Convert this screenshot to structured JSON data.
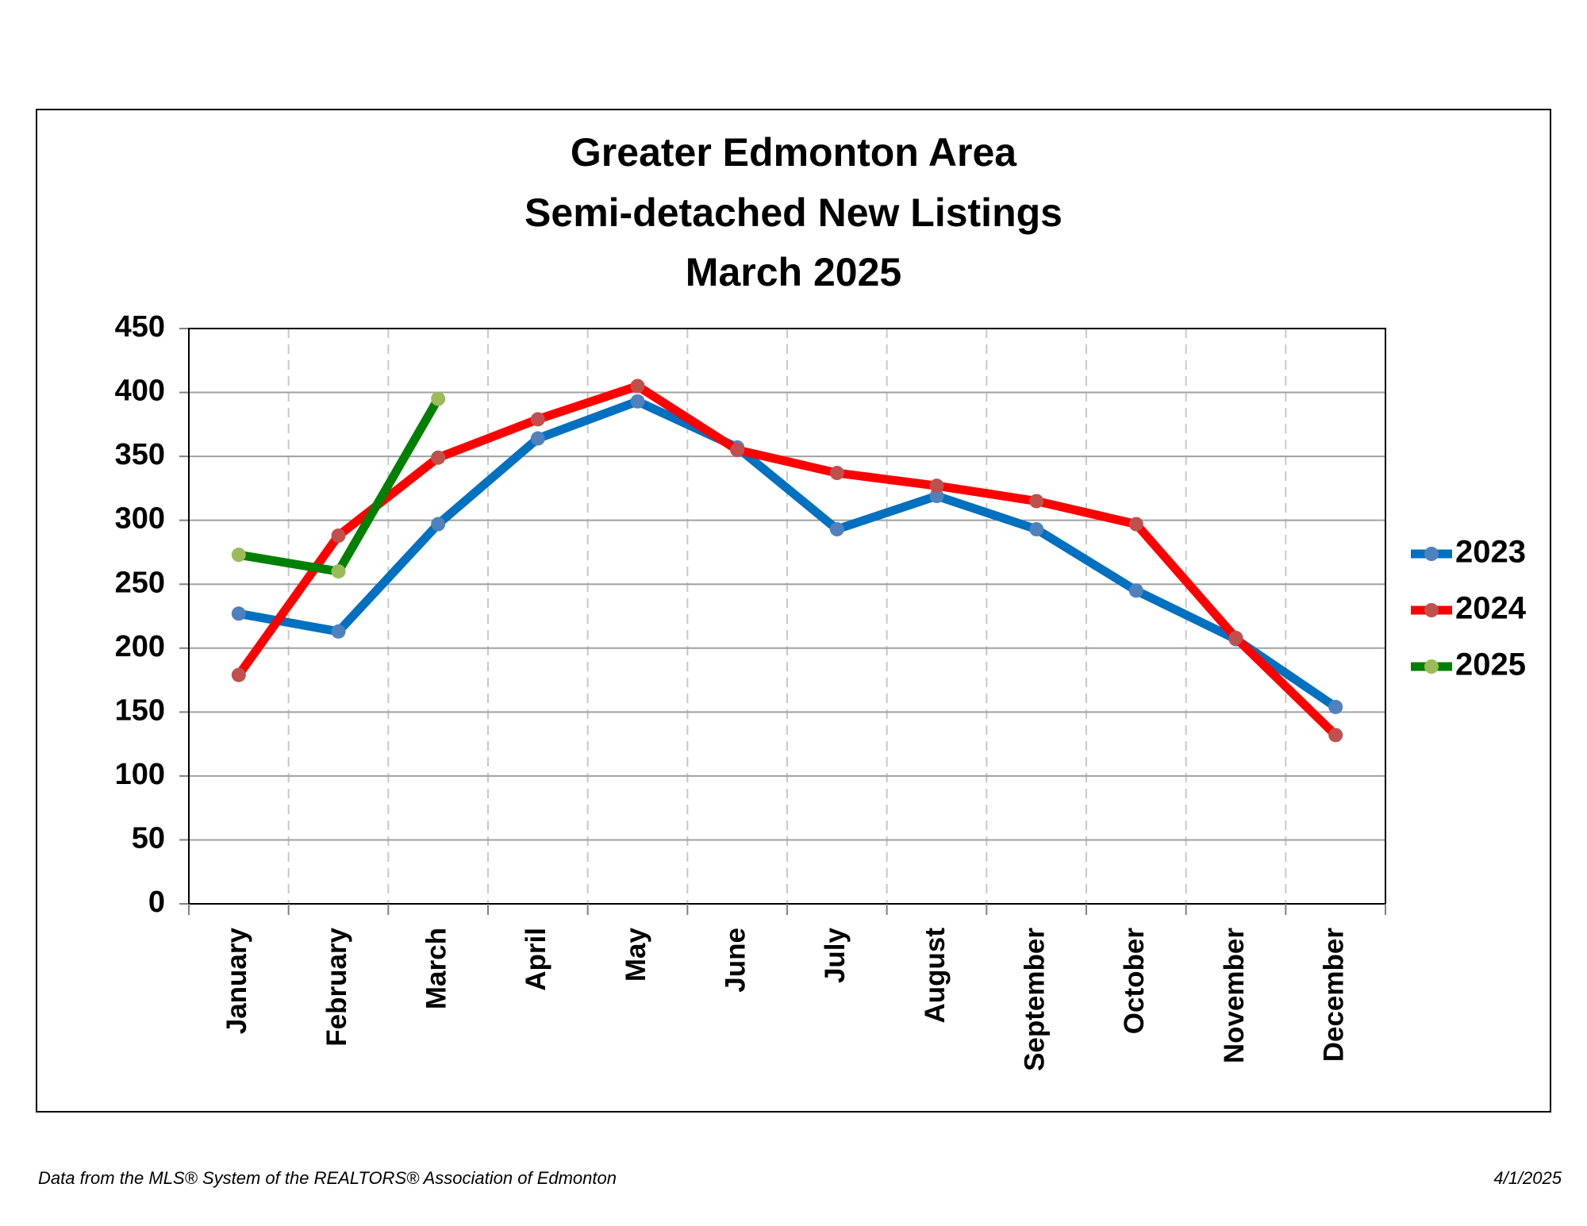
{
  "chart_data": {
    "type": "line",
    "title": [
      "Greater Edmonton Area",
      "Semi-detached New Listings",
      "March 2025"
    ],
    "categories": [
      "January",
      "February",
      "March",
      "April",
      "May",
      "June",
      "July",
      "August",
      "September",
      "October",
      "November",
      "December"
    ],
    "series": [
      {
        "name": "2023",
        "color": "#0070c0",
        "marker_color": "#4f81bd",
        "values": [
          227,
          213,
          297,
          364,
          393,
          357,
          293,
          319,
          293,
          245,
          207,
          154
        ]
      },
      {
        "name": "2024",
        "color": "#ff0000",
        "marker_color": "#c0504d",
        "values": [
          179,
          288,
          349,
          379,
          405,
          355,
          337,
          327,
          315,
          297,
          208,
          132
        ]
      },
      {
        "name": "2025",
        "color": "#008000",
        "marker_color": "#9bbb59",
        "values": [
          273,
          260,
          395,
          null,
          null,
          null,
          null,
          null,
          null,
          null,
          null,
          null
        ]
      }
    ],
    "ylim": [
      0,
      450
    ],
    "yticks": [
      0,
      50,
      100,
      150,
      200,
      250,
      300,
      350,
      400,
      450
    ],
    "grid": true,
    "legend": "right"
  },
  "footer": {
    "source": "Data from the MLS® System of the REALTORS® Association of Edmonton",
    "date": "4/1/2025"
  }
}
